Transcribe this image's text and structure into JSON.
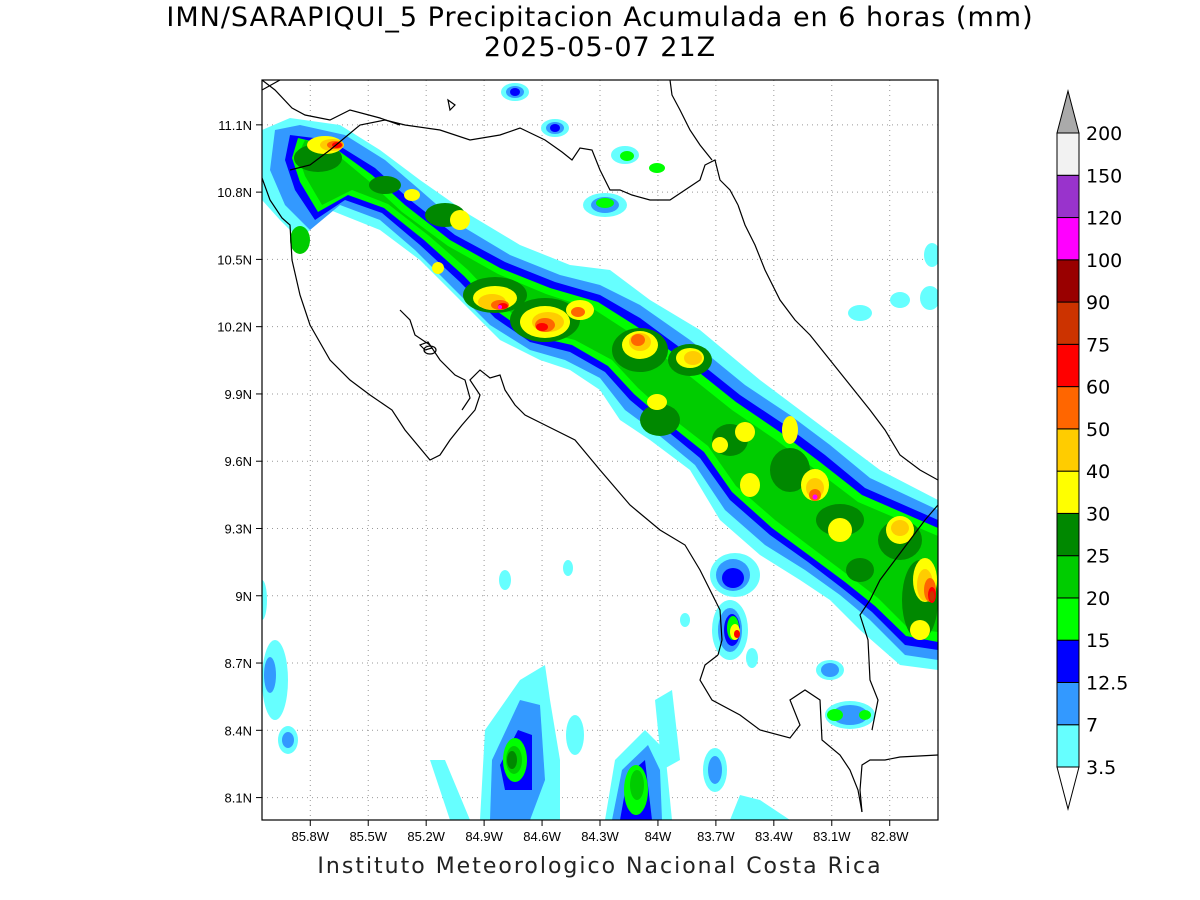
{
  "title": {
    "line1": "IMN/SARAPIQUI_5 Precipitacion Acumulada en 6 horas (mm)",
    "line2": "2025-05-07 21Z"
  },
  "credit": "Instituto Meteorologico Nacional Costa Rica",
  "map": {
    "lon_range": [
      -86.05,
      -82.55
    ],
    "lat_range": [
      8.0,
      11.3
    ],
    "lon_ticks": [
      {
        "v": -85.8,
        "label": "85.8W"
      },
      {
        "v": -85.5,
        "label": "85.5W"
      },
      {
        "v": -85.2,
        "label": "85.2W"
      },
      {
        "v": -84.9,
        "label": "84.9W"
      },
      {
        "v": -84.6,
        "label": "84.6W"
      },
      {
        "v": -84.3,
        "label": "84.3W"
      },
      {
        "v": -84.0,
        "label": "84W"
      },
      {
        "v": -83.7,
        "label": "83.7W"
      },
      {
        "v": -83.4,
        "label": "83.4W"
      },
      {
        "v": -83.1,
        "label": "83.1W"
      },
      {
        "v": -82.8,
        "label": "82.8W"
      }
    ],
    "lat_ticks": [
      {
        "v": 11.1,
        "label": "11.1N"
      },
      {
        "v": 10.8,
        "label": "10.8N"
      },
      {
        "v": 10.5,
        "label": "10.5N"
      },
      {
        "v": 10.2,
        "label": "10.2N"
      },
      {
        "v": 9.9,
        "label": "9.9N"
      },
      {
        "v": 9.6,
        "label": "9.6N"
      },
      {
        "v": 9.3,
        "label": "9.3N"
      },
      {
        "v": 9.0,
        "label": "9N"
      },
      {
        "v": 8.7,
        "label": "8.7N"
      },
      {
        "v": 8.4,
        "label": "8.4N"
      },
      {
        "v": 8.1,
        "label": "8.1N"
      }
    ],
    "grid": true
  },
  "legend": {
    "levels": [
      "3.5",
      "7",
      "12.5",
      "15",
      "20",
      "25",
      "30",
      "40",
      "50",
      "60",
      "75",
      "90",
      "100",
      "120",
      "150",
      "200"
    ],
    "colors": [
      "#66ffff",
      "#3399ff",
      "#0000ff",
      "#00ff00",
      "#00cc00",
      "#008800",
      "#ffff00",
      "#ffcc00",
      "#ff6600",
      "#ff0000",
      "#cc3300",
      "#990000",
      "#ff00ff",
      "#9933cc",
      "#f2f2f2",
      "#aaaaaa"
    ]
  }
}
